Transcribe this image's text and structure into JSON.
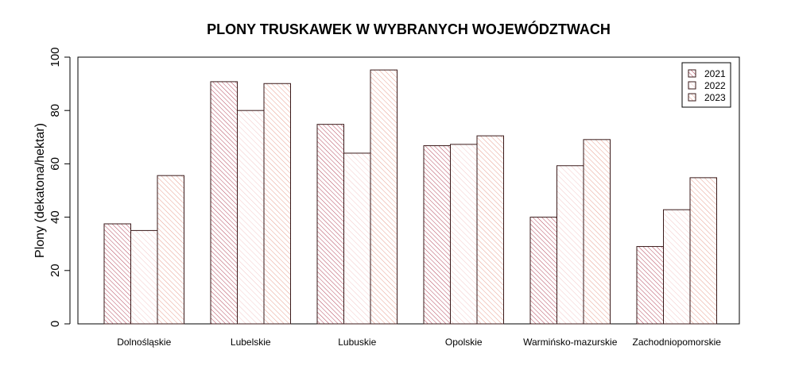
{
  "chart_data": {
    "type": "bar",
    "title": "PLONY TRUSKAWEK W WYBRANYCH WOJEWÓDZTWACH",
    "xlabel": "",
    "ylabel": "Plony (dekatona/hektar)",
    "ylim": [
      0,
      100
    ],
    "yticks": [
      "0",
      "20",
      "40",
      "60",
      "80",
      "100"
    ],
    "categories": [
      "Dolnośląskie",
      "Lubelskie",
      "Lubuskie",
      "Opolskie",
      "Warmińsko-mazurskie",
      "Zachodniopomorskie"
    ],
    "series": [
      {
        "name": "2021",
        "values": [
          37.5,
          90.8,
          74.8,
          66.8,
          40.0,
          29.0
        ],
        "color": "#b5485c"
      },
      {
        "name": "2022",
        "values": [
          35.0,
          80.0,
          64.0,
          67.3,
          59.3,
          42.8
        ],
        "color": "#f3c9c9"
      },
      {
        "name": "2023",
        "values": [
          55.6,
          90.1,
          95.2,
          70.5,
          69.1,
          54.8
        ],
        "color": "#e8a090"
      }
    ],
    "grid": false,
    "legend_position": "top-right"
  }
}
